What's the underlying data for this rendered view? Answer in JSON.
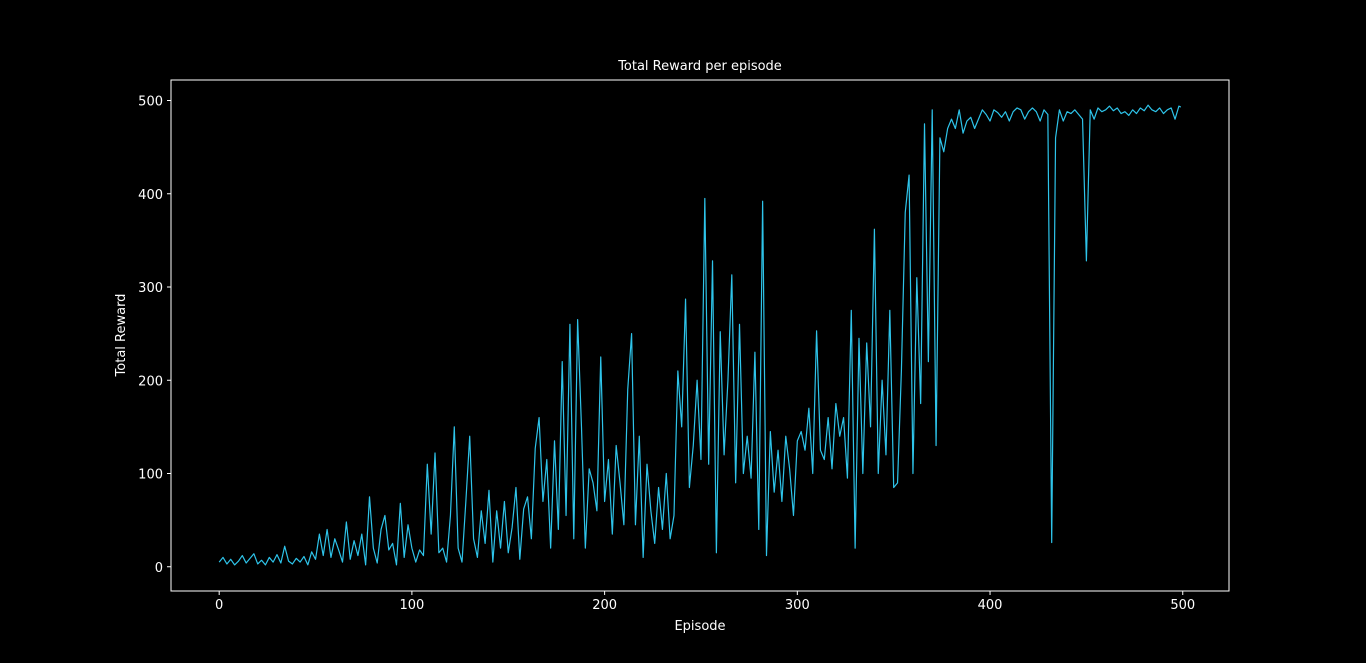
{
  "chart_data": {
    "type": "line",
    "title": "Total Reward per episode",
    "xlabel": "Episode",
    "ylabel": "Total Reward",
    "xlim": [
      -25,
      524
    ],
    "ylim": [
      -26,
      522
    ],
    "xticks": [
      0,
      100,
      200,
      300,
      400,
      500
    ],
    "xtick_labels": [
      "0",
      "100",
      "200",
      "300",
      "400",
      "500"
    ],
    "yticks": [
      0,
      100,
      200,
      300,
      400,
      500
    ],
    "ytick_labels": [
      "0",
      "100",
      "200",
      "300",
      "400",
      "500"
    ],
    "grid": false,
    "legend": "none",
    "colors": {
      "background": "#000000",
      "axes": "#ffffff",
      "line": "#2ec4ea"
    },
    "series": [
      {
        "color": "#2ec4ea",
        "x": [
          0,
          2,
          4,
          6,
          8,
          10,
          12,
          14,
          16,
          18,
          20,
          22,
          24,
          26,
          28,
          30,
          32,
          34,
          36,
          38,
          40,
          42,
          44,
          46,
          48,
          50,
          52,
          54,
          56,
          58,
          60,
          62,
          64,
          66,
          68,
          70,
          72,
          74,
          76,
          78,
          80,
          82,
          84,
          86,
          88,
          90,
          92,
          94,
          96,
          98,
          100,
          102,
          104,
          106,
          108,
          110,
          112,
          114,
          116,
          118,
          120,
          122,
          124,
          126,
          128,
          130,
          132,
          134,
          136,
          138,
          140,
          142,
          144,
          146,
          148,
          150,
          152,
          154,
          156,
          158,
          160,
          162,
          164,
          166,
          168,
          170,
          172,
          174,
          176,
          178,
          180,
          182,
          184,
          186,
          188,
          190,
          192,
          194,
          196,
          198,
          200,
          202,
          204,
          206,
          208,
          210,
          212,
          214,
          216,
          218,
          220,
          222,
          224,
          226,
          228,
          230,
          232,
          234,
          236,
          238,
          240,
          242,
          244,
          246,
          248,
          250,
          252,
          254,
          256,
          258,
          260,
          262,
          264,
          266,
          268,
          270,
          272,
          274,
          276,
          278,
          280,
          282,
          284,
          286,
          288,
          290,
          292,
          294,
          296,
          298,
          300,
          302,
          304,
          306,
          308,
          310,
          312,
          314,
          316,
          318,
          320,
          322,
          324,
          326,
          328,
          330,
          332,
          334,
          336,
          338,
          340,
          342,
          344,
          346,
          348,
          350,
          352,
          354,
          356,
          358,
          360,
          362,
          364,
          366,
          368,
          370,
          372,
          374,
          376,
          378,
          380,
          382,
          384,
          386,
          388,
          390,
          392,
          394,
          396,
          398,
          400,
          402,
          404,
          406,
          408,
          410,
          412,
          414,
          416,
          418,
          420,
          422,
          424,
          426,
          428,
          430,
          432,
          434,
          436,
          438,
          440,
          442,
          444,
          446,
          448,
          450,
          452,
          454,
          456,
          458,
          460,
          462,
          464,
          466,
          468,
          470,
          472,
          474,
          476,
          478,
          480,
          482,
          484,
          486,
          488,
          490,
          492,
          494,
          496,
          498,
          499
        ],
        "y": [
          5,
          10,
          3,
          8,
          2,
          6,
          12,
          4,
          9,
          14,
          3,
          7,
          2,
          10,
          5,
          13,
          4,
          22,
          6,
          3,
          9,
          5,
          11,
          2,
          16,
          8,
          35,
          12,
          40,
          10,
          30,
          18,
          5,
          48,
          8,
          28,
          12,
          35,
          2,
          75,
          20,
          4,
          40,
          55,
          18,
          25,
          2,
          68,
          10,
          45,
          20,
          5,
          18,
          12,
          110,
          35,
          122,
          15,
          20,
          5,
          55,
          150,
          20,
          5,
          70,
          140,
          30,
          10,
          60,
          25,
          82,
          5,
          60,
          20,
          70,
          15,
          42,
          85,
          8,
          62,
          75,
          30,
          127,
          160,
          70,
          115,
          20,
          135,
          40,
          220,
          55,
          260,
          30,
          265,
          150,
          20,
          105,
          90,
          60,
          225,
          70,
          115,
          35,
          130,
          90,
          45,
          190,
          250,
          45,
          140,
          10,
          110,
          60,
          25,
          85,
          40,
          100,
          30,
          55,
          210,
          150,
          287,
          85,
          130,
          200,
          115,
          395,
          110,
          328,
          15,
          252,
          120,
          200,
          313,
          90,
          260,
          100,
          140,
          95,
          230,
          40,
          392,
          12,
          145,
          80,
          125,
          70,
          140,
          105,
          55,
          135,
          145,
          125,
          170,
          100,
          253,
          125,
          115,
          160,
          105,
          175,
          140,
          160,
          95,
          275,
          20,
          245,
          100,
          240,
          150,
          362,
          100,
          200,
          120,
          275,
          85,
          90,
          210,
          380,
          420,
          100,
          310,
          175,
          475,
          220,
          490,
          130,
          460,
          445,
          470,
          480,
          470,
          490,
          465,
          478,
          482,
          470,
          480,
          490,
          485,
          478,
          490,
          487,
          482,
          488,
          478,
          488,
          492,
          490,
          480,
          488,
          492,
          488,
          478,
          490,
          485,
          26,
          460,
          490,
          478,
          488,
          486,
          490,
          485,
          480,
          328,
          490,
          480,
          492,
          488,
          490,
          494,
          489,
          492,
          486,
          488,
          484,
          490,
          486,
          492,
          489,
          495,
          490,
          488,
          492,
          486,
          490,
          492,
          480,
          494,
          493
        ]
      }
    ]
  }
}
